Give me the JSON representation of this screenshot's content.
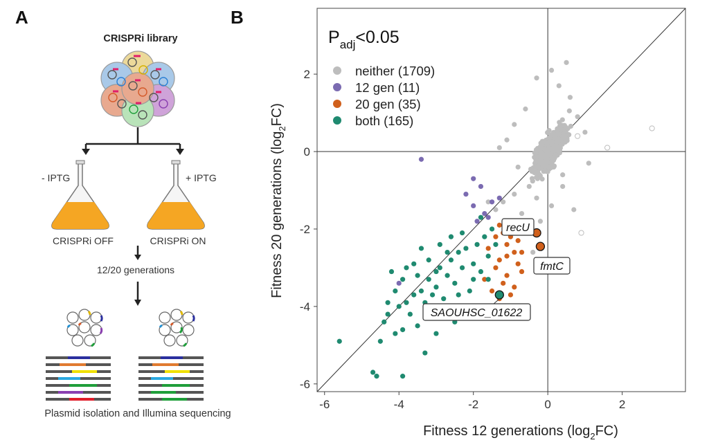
{
  "panels": {
    "a": "A",
    "b": "B"
  },
  "workflow": {
    "library_title": "CRISPRi library",
    "minus_iptg": "- IPTG",
    "plus_iptg": "+ IPTG",
    "off_label": "CRISPRi OFF",
    "on_label": "CRISPRi ON",
    "generations": "12/20 generations",
    "sequencing": "Plasmid isolation and Illumina sequencing"
  },
  "colors": {
    "neither": "#bdbdbd",
    "gen12": "#7b6bb1",
    "gen20": "#d0601c",
    "both": "#1f8a70",
    "culture": "#f5a623"
  },
  "chart_data": {
    "type": "scatter",
    "title": "P_adj<0.05",
    "title_main": "P",
    "title_sub": "adj",
    "title_tail": "<0.05",
    "xlabel_main": "Fitness 12 generations (log",
    "xlabel_sub": "2",
    "xlabel_tail": "FC)",
    "ylabel_main": "Fitness 20 generations (log",
    "ylabel_sub": "2",
    "ylabel_tail": "FC)",
    "xlim": [
      -6.2,
      3.7
    ],
    "ylim": [
      -6.2,
      3.7
    ],
    "xticks": [
      -6,
      -4,
      -2,
      0,
      2
    ],
    "yticks": [
      -6,
      -4,
      -2,
      0,
      2
    ],
    "xtick_labels": [
      "-6",
      "-4",
      "-2",
      "0",
      "2"
    ],
    "ytick_labels": [
      "-6",
      "-4",
      "-2",
      "0",
      "2"
    ],
    "legend_position": "top-left",
    "reference_lines": [
      "x=0",
      "y=0",
      "y=x"
    ],
    "legend": [
      {
        "label": "neither (1709)",
        "group": "neither"
      },
      {
        "label": "12 gen (11)",
        "group": "gen12"
      },
      {
        "label": "20 gen (35)",
        "group": "gen20"
      },
      {
        "label": "both (165)",
        "group": "both"
      }
    ],
    "series": [
      {
        "name": "neither",
        "points": [
          [
            0.1,
            2.1
          ],
          [
            0.5,
            2.3
          ],
          [
            0.3,
            1.7
          ],
          [
            -0.3,
            1.9
          ],
          [
            0.6,
            1.4
          ],
          [
            -0.6,
            1.1
          ],
          [
            0.8,
            0.9
          ],
          [
            -0.9,
            0.7
          ],
          [
            1.0,
            0.5
          ],
          [
            -1.1,
            0.3
          ],
          [
            -1.3,
            0.1
          ],
          [
            -0.8,
            -0.4
          ],
          [
            0.4,
            -0.6
          ],
          [
            -0.5,
            -0.9
          ],
          [
            -0.9,
            -1.1
          ],
          [
            -1.2,
            -1.3
          ],
          [
            -1.4,
            -1.5
          ],
          [
            -0.3,
            -1.2
          ],
          [
            0.1,
            -1.4
          ],
          [
            0.7,
            -1.5
          ],
          [
            -0.7,
            -1.6
          ],
          [
            -0.2,
            -1.8
          ],
          [
            0.4,
            -0.9
          ],
          [
            1.1,
            -0.3
          ],
          [
            -1.6,
            -1.3
          ],
          [
            -0.4,
            -2.6
          ]
        ]
      },
      {
        "name": "neither-outline",
        "points": [
          [
            2.8,
            0.6
          ],
          [
            1.6,
            0.1
          ],
          [
            0.9,
            -2.1
          ],
          [
            0.8,
            0.4
          ]
        ]
      },
      {
        "name": "12 gen",
        "points": [
          [
            -3.4,
            -0.2
          ],
          [
            -2.0,
            -0.7
          ],
          [
            -1.8,
            -0.9
          ],
          [
            -2.0,
            -1.4
          ],
          [
            -1.5,
            -1.3
          ],
          [
            -1.7,
            -1.6
          ],
          [
            -4.0,
            -3.4
          ],
          [
            -1.3,
            -1.2
          ],
          [
            -2.2,
            -1.1
          ],
          [
            -1.9,
            -1.8
          ],
          [
            -1.6,
            -1.7
          ]
        ]
      },
      {
        "name": "20 gen",
        "points": [
          [
            -1.3,
            -1.9
          ],
          [
            -1.2,
            -2.1
          ],
          [
            -1.1,
            -2.4
          ],
          [
            -1.0,
            -2.2
          ],
          [
            -0.9,
            -2.6
          ],
          [
            -1.3,
            -2.8
          ],
          [
            -1.4,
            -3.0
          ],
          [
            -1.1,
            -3.2
          ],
          [
            -0.8,
            -2.9
          ],
          [
            -1.2,
            -3.4
          ],
          [
            -1.5,
            -3.6
          ],
          [
            -1.3,
            -3.8
          ],
          [
            -0.7,
            -3.1
          ],
          [
            -0.9,
            -3.5
          ],
          [
            -1.6,
            -2.5
          ],
          [
            -1.7,
            -3.3
          ],
          [
            -0.6,
            -2.0
          ],
          [
            -0.8,
            -2.3
          ],
          [
            -1.0,
            -3.7
          ],
          [
            -1.4,
            -2.2
          ],
          [
            -1.1,
            -2.7
          ],
          [
            -0.7,
            -2.6
          ]
        ]
      },
      {
        "name": "both",
        "points": [
          [
            -5.6,
            -4.9
          ],
          [
            -4.7,
            -5.7
          ],
          [
            -4.6,
            -5.8
          ],
          [
            -3.9,
            -5.8
          ],
          [
            -4.1,
            -4.7
          ],
          [
            -4.3,
            -4.2
          ],
          [
            -4.4,
            -4.4
          ],
          [
            -4.0,
            -4.0
          ],
          [
            -3.9,
            -4.6
          ],
          [
            -3.8,
            -3.9
          ],
          [
            -3.6,
            -3.7
          ],
          [
            -3.7,
            -4.2
          ],
          [
            -3.5,
            -3.2
          ],
          [
            -3.4,
            -3.6
          ],
          [
            -3.3,
            -3.9
          ],
          [
            -3.2,
            -3.3
          ],
          [
            -3.1,
            -4.1
          ],
          [
            -3.0,
            -3.5
          ],
          [
            -2.9,
            -3.0
          ],
          [
            -2.8,
            -3.8
          ],
          [
            -2.7,
            -3.2
          ],
          [
            -2.6,
            -2.8
          ],
          [
            -2.5,
            -3.4
          ],
          [
            -2.4,
            -2.6
          ],
          [
            -2.3,
            -3.0
          ],
          [
            -2.2,
            -2.5
          ],
          [
            -2.1,
            -3.6
          ],
          [
            -2.0,
            -2.9
          ],
          [
            -1.9,
            -2.4
          ],
          [
            -1.8,
            -3.1
          ],
          [
            -1.7,
            -2.2
          ],
          [
            -1.6,
            -2.7
          ],
          [
            -1.5,
            -2.0
          ],
          [
            -2.6,
            -2.2
          ],
          [
            -3.2,
            -2.8
          ],
          [
            -3.6,
            -2.9
          ],
          [
            -3.9,
            -3.3
          ],
          [
            -4.1,
            -3.6
          ],
          [
            -4.2,
            -3.1
          ],
          [
            -2.8,
            -4.2
          ],
          [
            -3.0,
            -4.7
          ],
          [
            -2.5,
            -4.4
          ],
          [
            -2.2,
            -4.0
          ],
          [
            -1.9,
            -4.3
          ],
          [
            -3.3,
            -5.2
          ],
          [
            -2.9,
            -2.4
          ],
          [
            -2.4,
            -3.7
          ],
          [
            -3.5,
            -4.5
          ],
          [
            -4.5,
            -4.9
          ],
          [
            -3.8,
            -3.0
          ],
          [
            -1.6,
            -3.3
          ],
          [
            -2.7,
            -2.6
          ],
          [
            -3.0,
            -3.1
          ],
          [
            -2.3,
            -2.1
          ],
          [
            -1.8,
            -1.7
          ],
          [
            -3.4,
            -2.5
          ],
          [
            -2.0,
            -3.3
          ],
          [
            -2.6,
            -4.0
          ],
          [
            -4.3,
            -3.9
          ],
          [
            -3.1,
            -3.7
          ],
          [
            -1.4,
            -2.4
          ]
        ]
      }
    ],
    "highlighted": [
      {
        "gene": "recU",
        "x": -0.3,
        "y": -2.1,
        "group": "20 gen"
      },
      {
        "gene": "fmtC",
        "x": -0.2,
        "y": -2.45,
        "group": "20 gen"
      },
      {
        "gene": "SAOUHSC_01622",
        "x": -1.3,
        "y": -3.7,
        "group": "both"
      }
    ]
  }
}
